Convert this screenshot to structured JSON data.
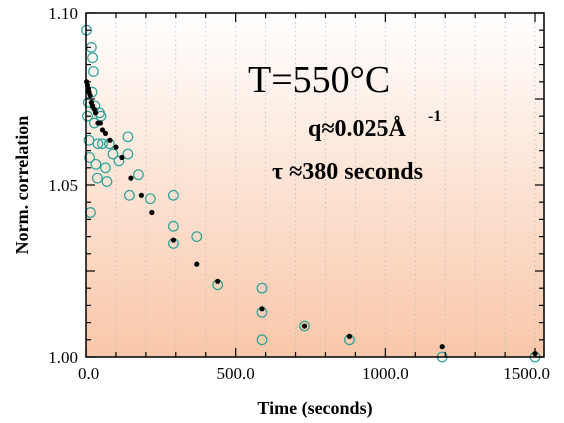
{
  "colors": {
    "bg_top": "#ffffff",
    "bg_bottom": "#f9c7a9",
    "open_marker": "#2aa198",
    "filled_marker": "#000000"
  },
  "chart_data": {
    "type": "scatter",
    "xlabel": "Time (seconds)",
    "ylabel": "Norm. correlation",
    "xlim": [
      0,
      1530
    ],
    "ylim": [
      1.0,
      1.1
    ],
    "x_ticks": [
      {
        "value": 0,
        "label": "0.0"
      },
      {
        "value": 500,
        "label": "500.0"
      },
      {
        "value": 1000,
        "label": "1000.0"
      },
      {
        "value": 1500,
        "label": "1500.0"
      }
    ],
    "y_ticks": [
      {
        "value": 1.0,
        "label": "1.00"
      },
      {
        "value": 1.05,
        "label": "1.05"
      },
      {
        "value": 1.1,
        "label": "1.10"
      }
    ],
    "annotations": {
      "temperature": "T=550°C",
      "q_text": "q≈0.025Å",
      "q_sup": "-1",
      "tau_text": "τ ≈380 seconds"
    },
    "series": [
      {
        "marker": "open-circle",
        "points": [
          [
            2,
            1.095
          ],
          [
            5,
            1.07
          ],
          [
            8,
            1.074
          ],
          [
            10,
            1.063
          ],
          [
            12,
            1.058
          ],
          [
            15,
            1.042
          ],
          [
            18,
            1.09
          ],
          [
            20,
            1.077
          ],
          [
            22,
            1.087
          ],
          [
            25,
            1.083
          ],
          [
            28,
            1.068
          ],
          [
            30,
            1.073
          ],
          [
            33,
            1.056
          ],
          [
            38,
            1.052
          ],
          [
            40,
            1.062
          ],
          [
            45,
            1.071
          ],
          [
            50,
            1.07
          ],
          [
            55,
            1.062
          ],
          [
            65,
            1.055
          ],
          [
            70,
            1.051
          ],
          [
            78,
            1.062
          ],
          [
            90,
            1.059
          ],
          [
            110,
            1.057
          ],
          [
            140,
            1.064
          ],
          [
            140,
            1.059
          ],
          [
            145,
            1.047
          ],
          [
            175,
            1.053
          ],
          [
            215,
            1.046
          ],
          [
            292,
            1.047
          ],
          [
            292,
            1.038
          ],
          [
            292,
            1.033
          ],
          [
            370,
            1.035
          ],
          [
            440,
            1.021
          ],
          [
            588,
            1.02
          ],
          [
            588,
            1.013
          ],
          [
            588,
            1.005
          ],
          [
            730,
            1.009
          ],
          [
            880,
            1.005
          ],
          [
            1190,
            1.0
          ],
          [
            1500,
            1.0
          ]
        ]
      },
      {
        "marker": "filled-dot",
        "points": [
          [
            2,
            1.08
          ],
          [
            5,
            1.079
          ],
          [
            8,
            1.078
          ],
          [
            10,
            1.077
          ],
          [
            14,
            1.076
          ],
          [
            18,
            1.074
          ],
          [
            22,
            1.073
          ],
          [
            28,
            1.072
          ],
          [
            32,
            1.071
          ],
          [
            40,
            1.068
          ],
          [
            48,
            1.068
          ],
          [
            55,
            1.066
          ],
          [
            65,
            1.065
          ],
          [
            80,
            1.063
          ],
          [
            100,
            1.061
          ],
          [
            120,
            1.058
          ],
          [
            150,
            1.052
          ],
          [
            185,
            1.047
          ],
          [
            220,
            1.042
          ],
          [
            292,
            1.034
          ],
          [
            370,
            1.027
          ],
          [
            440,
            1.022
          ],
          [
            588,
            1.014
          ],
          [
            730,
            1.009
          ],
          [
            880,
            1.006
          ],
          [
            1190,
            1.003
          ],
          [
            1500,
            1.001
          ]
        ]
      }
    ]
  }
}
